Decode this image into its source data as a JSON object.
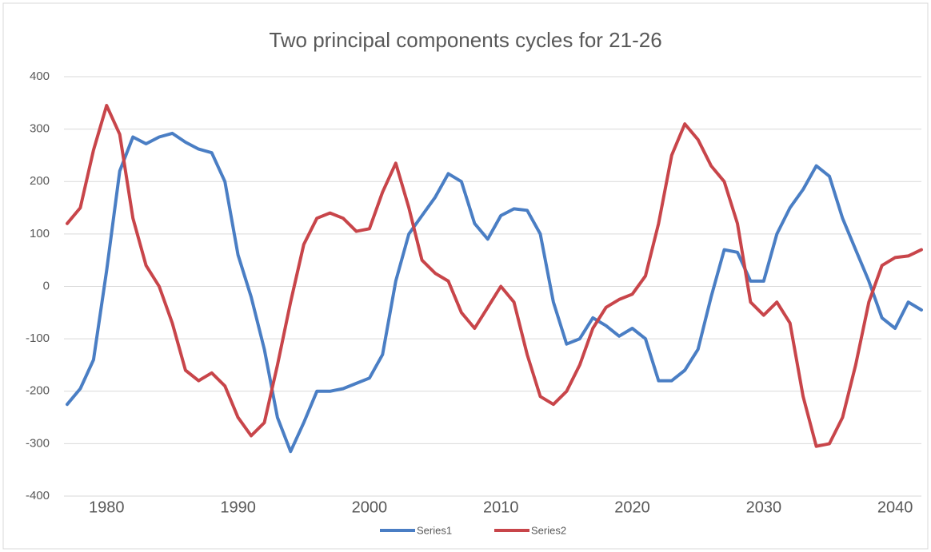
{
  "chart_data": {
    "type": "line",
    "title": "Two principal components cycles for  21-26",
    "x": [
      1977,
      1978,
      1979,
      1980,
      1981,
      1982,
      1983,
      1984,
      1985,
      1986,
      1987,
      1988,
      1989,
      1990,
      1991,
      1992,
      1993,
      1994,
      1995,
      1996,
      1997,
      1998,
      1999,
      2000,
      2001,
      2002,
      2003,
      2004,
      2005,
      2006,
      2007,
      2008,
      2009,
      2010,
      2011,
      2012,
      2013,
      2014,
      2015,
      2016,
      2017,
      2018,
      2019,
      2020,
      2021,
      2022,
      2023,
      2024,
      2025,
      2026,
      2027,
      2028,
      2029,
      2030,
      2031,
      2032,
      2033,
      2034,
      2035,
      2036,
      2037,
      2038,
      2039,
      2040,
      2041,
      2042
    ],
    "series": [
      {
        "name": "Series1",
        "color": "#4a7ec4",
        "values": [
          -225,
          -195,
          -140,
          30,
          220,
          285,
          272,
          285,
          292,
          275,
          262,
          255,
          200,
          60,
          -20,
          -120,
          -250,
          -315,
          -260,
          -200,
          -200,
          -195,
          -185,
          -175,
          -130,
          10,
          100,
          135,
          170,
          215,
          200,
          120,
          90,
          135,
          148,
          145,
          100,
          -30,
          -110,
          -100,
          -60,
          -75,
          -95,
          -80,
          -100,
          -180,
          -180,
          -160,
          -120,
          -20,
          70,
          65,
          10,
          10,
          100,
          150,
          185,
          230,
          210,
          130,
          70,
          10,
          -60,
          -80,
          -30,
          -45
        ]
      },
      {
        "name": "Series2",
        "color": "#c8454a",
        "values": [
          120,
          150,
          260,
          345,
          290,
          130,
          40,
          0,
          -70,
          -160,
          -180,
          -165,
          -190,
          -250,
          -285,
          -260,
          -150,
          -30,
          80,
          130,
          140,
          130,
          105,
          110,
          180,
          235,
          150,
          50,
          25,
          10,
          -50,
          -80,
          -40,
          0,
          -30,
          -130,
          -210,
          -225,
          -200,
          -150,
          -80,
          -40,
          -25,
          -15,
          20,
          120,
          250,
          310,
          280,
          230,
          200,
          120,
          -30,
          -55,
          -30,
          -70,
          -210,
          -305,
          -300,
          -250,
          -150,
          -30,
          40,
          55,
          58,
          70
        ]
      }
    ],
    "xlim": [
      1977,
      2042
    ],
    "xticks": [
      1980,
      1990,
      2000,
      2010,
      2020,
      2030,
      2040
    ],
    "ylim": [
      -400,
      400
    ],
    "yticks": [
      -400,
      -300,
      -200,
      -100,
      0,
      100,
      200,
      300,
      400
    ],
    "grid": true
  }
}
